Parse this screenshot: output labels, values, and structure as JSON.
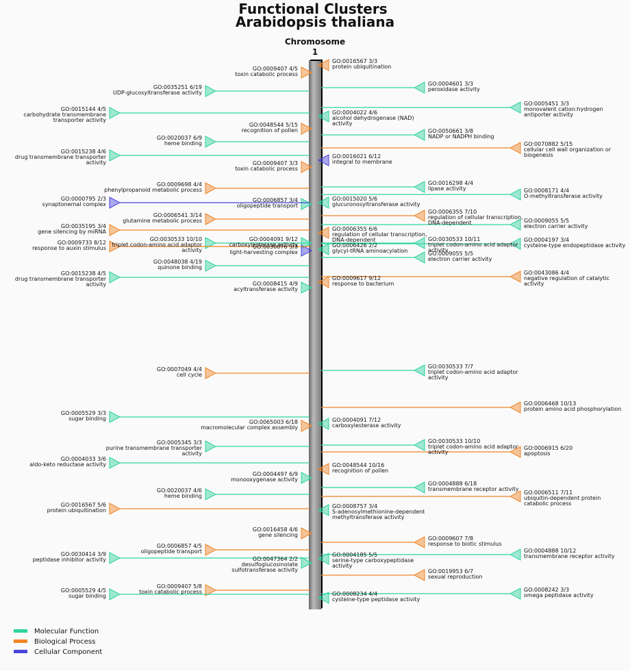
{
  "title": [
    "Functional Clusters",
    "Arabidopsis thaliana"
  ],
  "chromosome": {
    "label": "Chromosome",
    "number": "1"
  },
  "legend": [
    {
      "name": "Molecular Function",
      "color": "#2fd3a0"
    },
    {
      "name": "Biological Process",
      "color": "#ef8526"
    },
    {
      "name": "Cellular Component",
      "color": "#4a44dc"
    }
  ],
  "clusters": [
    {
      "id": "GO:0009407 4/5",
      "label": [
        "toxin catabolic process"
      ],
      "category": "Biological Process"
    },
    {
      "id": "GO:0048544 5/15",
      "label": [
        "recognition of pollen"
      ],
      "category": "Biological Process"
    },
    {
      "id": "GO:0009407 3/3",
      "label": [
        "toxin catabolic process"
      ],
      "category": "Biological Process"
    },
    {
      "id": "GO:0006857 3/4",
      "label": [
        "oligopeptide transport"
      ],
      "category": "Molecular Function"
    },
    {
      "id": "GO:0004091 9/12",
      "label": [
        "carboxylesterase activity"
      ],
      "category": "Molecular Function"
    },
    {
      "id": "GO:0030076 3/3",
      "label": [
        "light-harvesting complex"
      ],
      "category": "Cellular Component"
    },
    {
      "id": "GO:0008415 4/9",
      "label": [
        "acyltransferase activity"
      ],
      "category": "Molecular Function"
    },
    {
      "id": "GO:0065003 6/18",
      "label": [
        "macromolecular complex assembly"
      ],
      "category": "Biological Process"
    },
    {
      "id": "GO:0004497 6/9",
      "label": [
        "monooxygenase activity"
      ],
      "category": "Molecular Function"
    },
    {
      "id": "GO:0016458 4/6",
      "label": [
        "gene silencing"
      ],
      "category": "Biological Process"
    },
    {
      "id": "GO:0047364 2/2",
      "label": [
        "desulfoglucosinolate",
        "sulfotransferase activity"
      ],
      "category": "Molecular Function"
    },
    {
      "id": "GO:0035251 6/19",
      "label": [
        "UDP-glucosyltransferase activity"
      ],
      "category": "Molecular Function"
    },
    {
      "id": "GO:0020037 6/9",
      "label": [
        "heme binding"
      ],
      "category": "Molecular Function"
    },
    {
      "id": "GO:0009698 4/4",
      "label": [
        "phenylpropanoid metabolic process"
      ],
      "category": "Biological Process"
    },
    {
      "id": "GO:0006541 3/14",
      "label": [
        "glutamine metabolic process"
      ],
      "category": "Biological Process"
    },
    {
      "id": "GO:0030533 10/10",
      "label": [
        "triplet codon-amino acid adaptor",
        "activity"
      ],
      "category": "Molecular Function"
    },
    {
      "id": "GO:0048038 4/19",
      "label": [
        "quinone binding"
      ],
      "category": "Molecular Function"
    },
    {
      "id": "GO:0007049 4/4",
      "label": [
        "cell cycle"
      ],
      "category": "Biological Process"
    },
    {
      "id": "GO:0005345 3/3",
      "label": [
        "purine transmembrane transporter",
        "activity"
      ],
      "category": "Molecular Function"
    },
    {
      "id": "GO:0020037 4/6",
      "label": [
        "heme binding"
      ],
      "category": "Molecular Function"
    },
    {
      "id": "GO:0006857 4/5",
      "label": [
        "oligopeptide transport"
      ],
      "category": "Biological Process"
    },
    {
      "id": "GO:0009407 5/8",
      "label": [
        "toxin catabolic process"
      ],
      "category": "Biological Process"
    },
    {
      "id": "GO:0015144 4/5",
      "label": [
        "carbohydrate transmembrane",
        "transporter activity"
      ],
      "category": "Molecular Function"
    },
    {
      "id": "GO:0015238 4/6",
      "label": [
        "drug transmembrane transporter",
        "activity"
      ],
      "category": "Molecular Function"
    },
    {
      "id": "GO:0000795 2/3",
      "label": [
        "synaptonemal complex"
      ],
      "category": "Cellular Component"
    },
    {
      "id": "GO:0035195 3/4",
      "label": [
        "gene silencing by miRNA"
      ],
      "category": "Biological Process"
    },
    {
      "id": "GO:0009733 8/12",
      "label": [
        "response to auxin stimulus"
      ],
      "category": "Biological Process"
    },
    {
      "id": "GO:0015238 4/5",
      "label": [
        "drug transmembrane transporter",
        "activity"
      ],
      "category": "Molecular Function"
    },
    {
      "id": "GO:0005529 3/3",
      "label": [
        "sugar binding"
      ],
      "category": "Molecular Function"
    },
    {
      "id": "GO:0004033 3/6",
      "label": [
        "aldo-keto reductase activity"
      ],
      "category": "Molecular Function"
    },
    {
      "id": "GO:0016567 5/6",
      "label": [
        "protein ubiquitination"
      ],
      "category": "Biological Process"
    },
    {
      "id": "GO:0030414 3/9",
      "label": [
        "peptidase inhibitor activity"
      ],
      "category": "Molecular Function"
    },
    {
      "id": "GO:0005529 4/5",
      "label": [
        "sugar binding"
      ],
      "category": "Molecular Function"
    },
    {
      "id": "GO:0016567 3/3",
      "label": [
        "protein ubiquitination"
      ],
      "category": "Biological Process"
    },
    {
      "id": "GO:0004022 4/6",
      "label": [
        "alcohol dehydrogenase (NAD)",
        "activity"
      ],
      "category": "Molecular Function"
    },
    {
      "id": "GO:0016021 6/12",
      "label": [
        "integral to membrane"
      ],
      "category": "Cellular Component"
    },
    {
      "id": "GO:0015020 5/6",
      "label": [
        "glucuronosyltransferase activity"
      ],
      "category": "Molecular Function"
    },
    {
      "id": "GO:0006355 6/6",
      "label": [
        "regulation of cellular transcription,",
        "DNA-dependent"
      ],
      "category": "Biological Process"
    },
    {
      "id": "GO:0006426 2/2",
      "label": [
        "glycyl-tRNA aminoacylation"
      ],
      "category": "Molecular Function"
    },
    {
      "id": "GO:0009617 9/12",
      "label": [
        "response to bacterium"
      ],
      "category": "Biological Process"
    },
    {
      "id": "GO:0004091 7/12",
      "label": [
        "carboxylesterase activity"
      ],
      "category": "Molecular Function"
    },
    {
      "id": "GO:0048544 10/16",
      "label": [
        "recognition of pollen"
      ],
      "category": "Biological Process"
    },
    {
      "id": "GO:0008757 3/4",
      "label": [
        "S-adenosylmethionine-dependent",
        "methyltransferase activity"
      ],
      "category": "Molecular Function"
    },
    {
      "id": "GO:0004185 5/5",
      "label": [
        "serine-type carboxypeptidase",
        "activity"
      ],
      "category": "Molecular Function"
    },
    {
      "id": "GO:0008234 4/4",
      "label": [
        "cysteine-type peptidase activity"
      ],
      "category": "Molecular Function"
    },
    {
      "id": "GO:0004601 3/3",
      "label": [
        "peroxidase activity"
      ],
      "category": "Molecular Function"
    },
    {
      "id": "GO:0050661 3/8",
      "label": [
        "NADP or NADPH binding"
      ],
      "category": "Molecular Function"
    },
    {
      "id": "GO:0016298 4/4",
      "label": [
        "lipase activity"
      ],
      "category": "Molecular Function"
    },
    {
      "id": "GO:0006355 7/10",
      "label": [
        "regulation of cellular transcription,",
        "DNA-dependent"
      ],
      "category": "Biological Process"
    },
    {
      "id": "GO:0030533 10/11",
      "label": [
        "triplet codon-amino acid adaptor",
        "activity"
      ],
      "category": "Molecular Function"
    },
    {
      "id": "GO:0009055 5/5",
      "label": [
        "electron carrier activity"
      ],
      "category": "Molecular Function"
    },
    {
      "id": "GO:0030533 7/7",
      "label": [
        "triplet codon-amino acid adaptor",
        "activity"
      ],
      "category": "Molecular Function"
    },
    {
      "id": "GO:0030533 10/10",
      "label": [
        "triplet codon-amino acid adaptor",
        "activity"
      ],
      "category": "Molecular Function"
    },
    {
      "id": "GO:0004888 6/18",
      "label": [
        "transmembrane receptor activity"
      ],
      "category": "Molecular Function"
    },
    {
      "id": "GO:0009607 7/8",
      "label": [
        "response to biotic stimulus"
      ],
      "category": "Biological Process"
    },
    {
      "id": "GO:0019953 6/7",
      "label": [
        "sexual reproduction"
      ],
      "category": "Biological Process"
    },
    {
      "id": "GO:0005451 3/3",
      "label": [
        "monovalent cation:hydrogen",
        "antiporter activity"
      ],
      "category": "Molecular Function"
    },
    {
      "id": "GO:0070882 5/15",
      "label": [
        "cellular cell wall organization or",
        "biogenesis"
      ],
      "category": "Biological Process"
    },
    {
      "id": "GO:0008171 4/4",
      "label": [
        "O-methyltransferase activity"
      ],
      "category": "Molecular Function"
    },
    {
      "id": "GO:0009055 5/5",
      "label": [
        "electron carrier activity"
      ],
      "category": "Molecular Function"
    },
    {
      "id": "GO:0004197 3/4",
      "label": [
        "cysteine-type endopeptidase activity"
      ],
      "category": "Molecular Function"
    },
    {
      "id": "GO:0043086 4/4",
      "label": [
        "negative regulation of catalytic",
        "activity"
      ],
      "category": "Biological Process"
    },
    {
      "id": "GO:0006468 10/13",
      "label": [
        "protein amino acid phosphorylation"
      ],
      "category": "Biological Process"
    },
    {
      "id": "GO:0006915 6/20",
      "label": [
        "apoptosis"
      ],
      "category": "Biological Process"
    },
    {
      "id": "GO:0006511 7/11",
      "label": [
        "ubiquitin-dependent protein",
        "catabolic process"
      ],
      "category": "Biological Process"
    },
    {
      "id": "GO:0004888 10/12",
      "label": [
        "transmembrane receptor activity"
      ],
      "category": "Molecular Function"
    },
    {
      "id": "GO:0008242 3/3",
      "label": [
        "omega peptidase activity"
      ],
      "category": "Molecular Function"
    }
  ]
}
